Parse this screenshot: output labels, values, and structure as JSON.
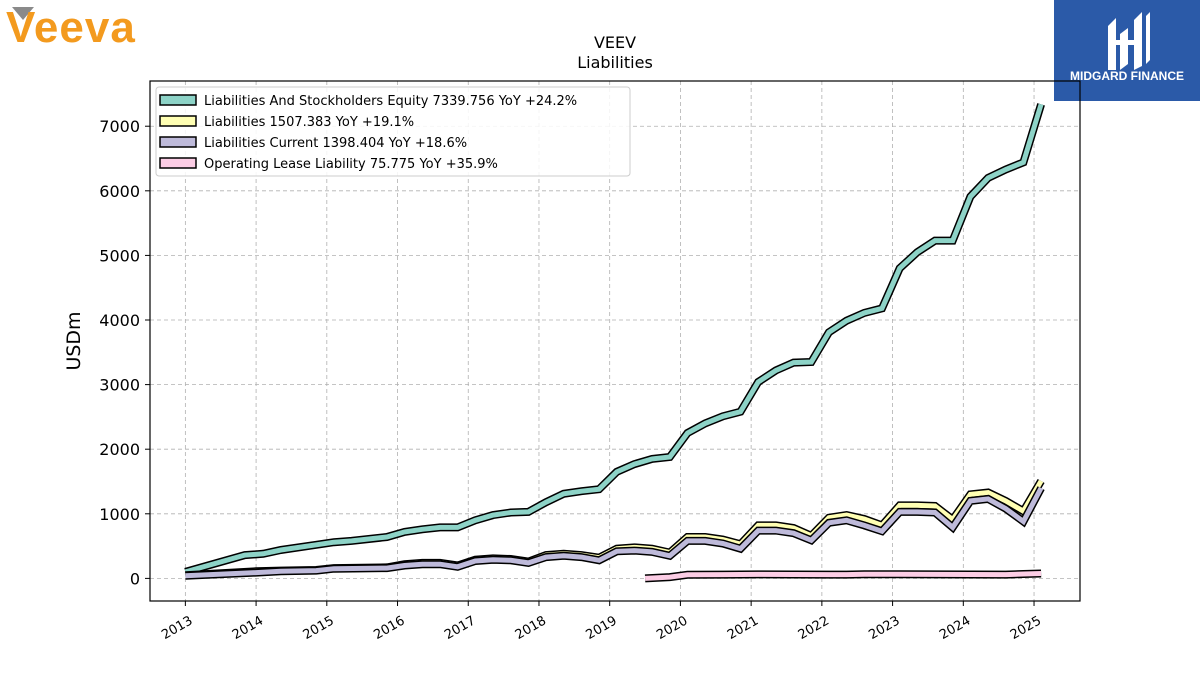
{
  "brand": {
    "company_logo_text": "Veeva",
    "publisher_logo_text": "MIDGARD FINANCE",
    "colors": {
      "veeva_orange": "#f39a1e",
      "veeva_gray": "#8a8a8a",
      "midgard_blue": "#2b5aa8"
    }
  },
  "chart_data": {
    "type": "line",
    "title": "VEEV",
    "subtitle": "Liabilities",
    "ylabel": "USDm",
    "xlabel": "",
    "xlim": [
      2012.5,
      2025.65
    ],
    "ylim": [
      -350,
      7700
    ],
    "yticks": [
      0,
      1000,
      2000,
      3000,
      4000,
      5000,
      6000,
      7000
    ],
    "xticks": [
      2013,
      2014,
      2015,
      2016,
      2017,
      2018,
      2019,
      2020,
      2021,
      2022,
      2023,
      2024,
      2025
    ],
    "grid": true,
    "legend_position": "top-left",
    "series": [
      {
        "name": "Liabilities And Stockholders Equity",
        "legend": "Liabilities And Stockholders Equity  7339.756 YoY +24.2%",
        "color": "#8dd3c7",
        "points": [
          [
            2013.0,
            100
          ],
          [
            2013.84,
            360
          ],
          [
            2014.1,
            380
          ],
          [
            2014.35,
            440
          ],
          [
            2014.85,
            520
          ],
          [
            2015.1,
            560
          ],
          [
            2015.35,
            580
          ],
          [
            2015.85,
            640
          ],
          [
            2016.1,
            720
          ],
          [
            2016.35,
            760
          ],
          [
            2016.6,
            790
          ],
          [
            2016.85,
            790
          ],
          [
            2017.1,
            900
          ],
          [
            2017.35,
            980
          ],
          [
            2017.6,
            1020
          ],
          [
            2017.85,
            1030
          ],
          [
            2018.1,
            1180
          ],
          [
            2018.35,
            1310
          ],
          [
            2018.6,
            1350
          ],
          [
            2018.85,
            1380
          ],
          [
            2019.1,
            1650
          ],
          [
            2019.35,
            1770
          ],
          [
            2019.6,
            1850
          ],
          [
            2019.85,
            1880
          ],
          [
            2020.1,
            2250
          ],
          [
            2020.35,
            2400
          ],
          [
            2020.6,
            2510
          ],
          [
            2020.85,
            2580
          ],
          [
            2021.1,
            3040
          ],
          [
            2021.35,
            3220
          ],
          [
            2021.6,
            3340
          ],
          [
            2021.85,
            3350
          ],
          [
            2022.1,
            3810
          ],
          [
            2022.35,
            3990
          ],
          [
            2022.6,
            4110
          ],
          [
            2022.85,
            4180
          ],
          [
            2023.1,
            4800
          ],
          [
            2023.35,
            5050
          ],
          [
            2023.6,
            5230
          ],
          [
            2023.85,
            5230
          ],
          [
            2024.1,
            5910
          ],
          [
            2024.35,
            6200
          ],
          [
            2024.6,
            6330
          ],
          [
            2024.85,
            6440
          ],
          [
            2025.1,
            7340
          ]
        ]
      },
      {
        "name": "Liabilities",
        "legend": "Liabilities  1507.383 YoY +19.1%",
        "color": "#ffffb3",
        "points": [
          [
            2013.0,
            50
          ],
          [
            2014.0,
            110
          ],
          [
            2014.35,
            120
          ],
          [
            2014.85,
            130
          ],
          [
            2015.1,
            160
          ],
          [
            2015.85,
            170
          ],
          [
            2016.1,
            220
          ],
          [
            2016.35,
            240
          ],
          [
            2016.6,
            240
          ],
          [
            2016.85,
            200
          ],
          [
            2017.1,
            290
          ],
          [
            2017.35,
            310
          ],
          [
            2017.6,
            300
          ],
          [
            2017.85,
            260
          ],
          [
            2018.1,
            360
          ],
          [
            2018.35,
            380
          ],
          [
            2018.6,
            360
          ],
          [
            2018.85,
            320
          ],
          [
            2019.1,
            460
          ],
          [
            2019.35,
            480
          ],
          [
            2019.6,
            460
          ],
          [
            2019.85,
            400
          ],
          [
            2020.1,
            640
          ],
          [
            2020.35,
            640
          ],
          [
            2020.6,
            600
          ],
          [
            2020.85,
            530
          ],
          [
            2021.1,
            820
          ],
          [
            2021.35,
            820
          ],
          [
            2021.6,
            780
          ],
          [
            2021.85,
            660
          ],
          [
            2022.1,
            940
          ],
          [
            2022.35,
            980
          ],
          [
            2022.6,
            920
          ],
          [
            2022.85,
            820
          ],
          [
            2023.1,
            1130
          ],
          [
            2023.35,
            1130
          ],
          [
            2023.6,
            1120
          ],
          [
            2023.85,
            910
          ],
          [
            2024.1,
            1300
          ],
          [
            2024.35,
            1330
          ],
          [
            2024.6,
            1200
          ],
          [
            2024.85,
            1040
          ],
          [
            2025.1,
            1507
          ]
        ]
      },
      {
        "name": "Liabilities Current",
        "legend": "Liabilities Current  1398.404 YoY +18.6%",
        "color": "#bebada",
        "points": [
          [
            2013.0,
            40
          ],
          [
            2014.0,
            90
          ],
          [
            2014.35,
            110
          ],
          [
            2014.85,
            120
          ],
          [
            2015.1,
            150
          ],
          [
            2015.85,
            160
          ],
          [
            2016.1,
            200
          ],
          [
            2016.35,
            220
          ],
          [
            2016.6,
            220
          ],
          [
            2016.85,
            180
          ],
          [
            2017.1,
            270
          ],
          [
            2017.35,
            290
          ],
          [
            2017.6,
            280
          ],
          [
            2017.85,
            240
          ],
          [
            2018.1,
            330
          ],
          [
            2018.35,
            350
          ],
          [
            2018.6,
            330
          ],
          [
            2018.85,
            280
          ],
          [
            2019.1,
            420
          ],
          [
            2019.35,
            430
          ],
          [
            2019.6,
            410
          ],
          [
            2019.85,
            350
          ],
          [
            2020.1,
            580
          ],
          [
            2020.35,
            580
          ],
          [
            2020.6,
            540
          ],
          [
            2020.85,
            460
          ],
          [
            2021.1,
            740
          ],
          [
            2021.35,
            740
          ],
          [
            2021.6,
            700
          ],
          [
            2021.85,
            590
          ],
          [
            2022.1,
            860
          ],
          [
            2022.35,
            900
          ],
          [
            2022.6,
            820
          ],
          [
            2022.85,
            730
          ],
          [
            2023.1,
            1030
          ],
          [
            2023.35,
            1030
          ],
          [
            2023.6,
            1020
          ],
          [
            2023.85,
            790
          ],
          [
            2024.1,
            1200
          ],
          [
            2024.35,
            1230
          ],
          [
            2024.6,
            1080
          ],
          [
            2024.85,
            880
          ],
          [
            2025.1,
            1398
          ]
        ]
      },
      {
        "name": "Operating Lease Liability",
        "legend": "Operating Lease Liability  75.775 YoY +35.9%",
        "color": "#fccde5",
        "points": [
          [
            2019.5,
            0
          ],
          [
            2019.85,
            20
          ],
          [
            2020.1,
            55
          ],
          [
            2020.6,
            58
          ],
          [
            2021.1,
            62
          ],
          [
            2021.6,
            60
          ],
          [
            2022.1,
            58
          ],
          [
            2022.35,
            58
          ],
          [
            2022.6,
            65
          ],
          [
            2023.1,
            65
          ],
          [
            2023.6,
            62
          ],
          [
            2024.1,
            60
          ],
          [
            2024.6,
            58
          ],
          [
            2024.85,
            68
          ],
          [
            2025.1,
            76
          ]
        ]
      }
    ]
  }
}
